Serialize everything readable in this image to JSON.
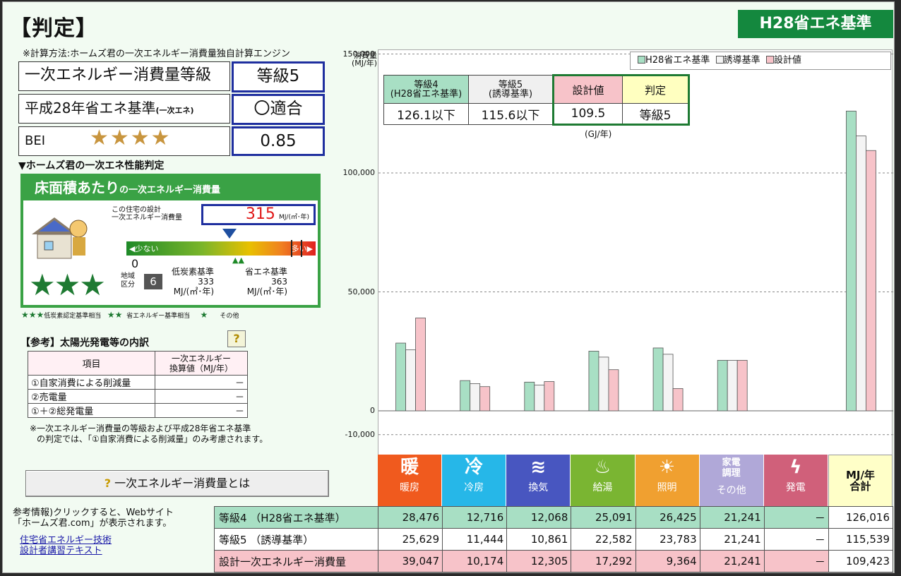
{
  "title": "【判定】",
  "standard_badge": "H28省エネ基準",
  "calc_method": "※計算方法:ホームズ君の一次エネルギー消費量独自計算エンジン",
  "grades": [
    {
      "label": "一次エネルギー消費量等級",
      "value": "等級5"
    },
    {
      "label": "平成28年省エネ基準",
      "sub": "(一次エネ)",
      "value": "〇適合"
    },
    {
      "label": "BEI",
      "value": "0.85"
    }
  ],
  "bei_stars": "★★★★",
  "perf_heading": "▼ホームズ君の一次エネ性能判定",
  "floor": {
    "title": "床面積あたり",
    "title_sub": "の一次エネルギー消費量",
    "design_label_1": "この住宅の設計",
    "design_label_2": "一次エネルギー消費量",
    "design_value": "315",
    "design_unit": "MJ/(㎡･年)",
    "bar_low": "少ない",
    "bar_high": "多い",
    "zero": "0",
    "region_label_1": "地域",
    "region_label_2": "区分",
    "region": "6",
    "lowcarbon_label": "低炭素基準",
    "lowcarbon_value": "333",
    "lowcarbon_unit": "MJ/(㎡･年)",
    "energy_label": "省エネ基準",
    "energy_value": "363",
    "energy_unit": "MJ/(㎡･年)",
    "stars": "★★★",
    "marker_fraction": 0.87,
    "lowcarbon_marker_fraction": 0.92
  },
  "stars_legend": [
    {
      "stars": "★★★",
      "label": "低炭素認定基準相当"
    },
    {
      "stars": "★★",
      "label": "省エネルギー基準相当"
    },
    {
      "stars": "★",
      "label": "その他"
    }
  ],
  "solar": {
    "heading": "【参考】太陽光発電等の内訳",
    "help": "?",
    "col1": "項目",
    "col2a": "一次エネルギー",
    "col2b": "換算値（MJ/年）",
    "rows": [
      {
        "item": "①自家消費による削減量",
        "value": "－"
      },
      {
        "item": "②売電量",
        "value": "－"
      },
      {
        "item": "①＋②総発電量",
        "value": "－"
      }
    ],
    "note_1": "※一次エネルギー消費量の等級および平成28年省エネ基準",
    "note_2": "の判定では、「①自家消費による削減量」のみ考慮されます。"
  },
  "help_button": "一次エネルギー消費量とは",
  "ref_info_1": "参考情報)クリックすると、Webサイト",
  "ref_info_2": "「ホームズ君.com」が表示されます。",
  "links": [
    "住宅省エネルギー技術",
    "設計者講習テキスト"
  ],
  "summary": {
    "headers": [
      {
        "l1": "等級4",
        "l2": "(H28省エネ基準)",
        "color": "#a8dfc4"
      },
      {
        "l1": "等級5",
        "l2": "(誘導基準)",
        "color": "#f0f0f0"
      },
      {
        "l1": "設計値",
        "l2": "",
        "color": "#f7c3c9"
      },
      {
        "l1": "判定",
        "l2": "",
        "color": "#ffffc0"
      }
    ],
    "values": [
      "126.1以下",
      "115.6以下",
      "109.5",
      "等級5"
    ],
    "unit": "(GJ/年)"
  },
  "chart_data": {
    "type": "bar",
    "ylabel": "消費量\n(MJ/年)",
    "ylim": [
      -10000,
      150000
    ],
    "yticks": [
      "150,000",
      "100,000",
      "50,000",
      "0",
      "-10,000"
    ],
    "grid": true,
    "legend_position": "top-right",
    "categories": [
      "暖房",
      "冷房",
      "換気",
      "給湯",
      "照明",
      "その他",
      "発電",
      "合計"
    ],
    "series": [
      {
        "name": "H28省エネ基準",
        "color": "#a8dfc4",
        "values": [
          28476,
          12716,
          12068,
          25091,
          26425,
          21241,
          0,
          126016
        ]
      },
      {
        "name": "誘導基準",
        "color": "#f4f4f4",
        "values": [
          25629,
          11444,
          10861,
          22582,
          23783,
          21241,
          0,
          115539
        ]
      },
      {
        "name": "設計値",
        "color": "#f7c3c9",
        "values": [
          39047,
          10174,
          12305,
          17292,
          9364,
          21241,
          0,
          109423
        ]
      }
    ]
  },
  "categories_ui": [
    {
      "icon": "暖",
      "label": "暖房",
      "color": "#f05a1e"
    },
    {
      "icon": "冷",
      "label": "冷房",
      "color": "#26b7e8"
    },
    {
      "icon": "≋",
      "label": "換気",
      "color": "#4856c0"
    },
    {
      "icon": "♨",
      "label": "給湯",
      "color": "#7ab532"
    },
    {
      "icon": "☀",
      "label": "照明",
      "color": "#f0a030"
    },
    {
      "icon": "家電\n調理",
      "label": "その他",
      "color": "#b0a8d8"
    },
    {
      "icon": "ϟ",
      "label": "発電",
      "color": "#d0607a"
    }
  ],
  "total_header": "MJ/年\n合計",
  "table_rows": [
    {
      "label": "等級4 （H28省エネ基準）",
      "color": "#a8dfc4",
      "values": [
        "28,476",
        "12,716",
        "12,068",
        "25,091",
        "26,425",
        "21,241",
        "－",
        "126,016"
      ]
    },
    {
      "label": "等級5 （誘導基準）",
      "color": "#ffffff",
      "values": [
        "25,629",
        "11,444",
        "10,861",
        "22,582",
        "23,783",
        "21,241",
        "－",
        "115,539"
      ]
    },
    {
      "label": "設計一次エネルギー消費量",
      "color": "#f7c3c9",
      "values": [
        "39,047",
        "10,174",
        "12,305",
        "17,292",
        "9,364",
        "21,241",
        "－",
        "109,423"
      ]
    }
  ]
}
